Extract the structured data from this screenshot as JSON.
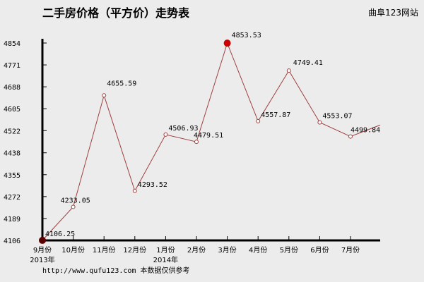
{
  "brand": "曲阜123网站",
  "footer": "http://www.qufu123.com 本数据仅供参考",
  "colors": {
    "background": "#ececec",
    "line": "#a04040",
    "point_fill": "#ffffff",
    "highlight": "#cc0000",
    "axis": "#000000"
  },
  "chart_data": {
    "type": "line",
    "title": "二手房价格（平方价）走势表",
    "xlabel": "",
    "ylabel": "",
    "categories": [
      "9月份",
      "10月份",
      "11月份",
      "12月份",
      "1月份",
      "2月份",
      "3月份",
      "4月份",
      "5月份",
      "6月份",
      "7月份"
    ],
    "year_labels": [
      {
        "category_index": 0,
        "text": "2013年"
      },
      {
        "category_index": 4,
        "text": "2014年"
      }
    ],
    "yticks": [
      4106,
      4189,
      4272,
      4355,
      4438,
      4522,
      4605,
      4688,
      4771,
      4854
    ],
    "ylim": [
      4106,
      4854
    ],
    "series": [
      {
        "values": [
          4106.25,
          4233.05,
          4655.59,
          4293.52,
          4506.93,
          4479.51,
          4853.53,
          4557.87,
          4749.41,
          4553.07,
          4499.84
        ],
        "labels": [
          "4106.25",
          "4233.05",
          "4655.59",
          "4293.52",
          "4506.93",
          "4479.51",
          "4853.53",
          "4557.87",
          "4749.41",
          "4553.07",
          "4499.84"
        ],
        "highlight_indices": [
          0,
          6
        ]
      }
    ],
    "trailing_value": 4543,
    "grid": false,
    "legend": "none"
  }
}
